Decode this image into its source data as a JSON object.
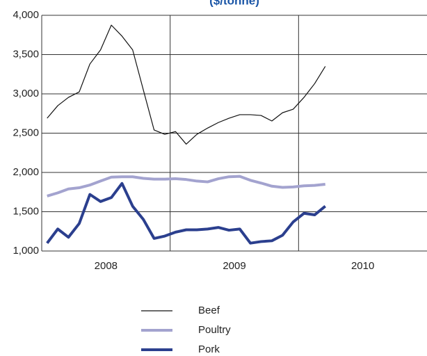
{
  "chart_data": {
    "type": "line",
    "title": "($/tonne)",
    "x": [
      2008.042,
      2008.125,
      2008.208,
      2008.292,
      2008.375,
      2008.458,
      2008.542,
      2008.625,
      2008.708,
      2008.792,
      2008.875,
      2008.958,
      2009.042,
      2009.125,
      2009.208,
      2009.292,
      2009.375,
      2009.458,
      2009.542,
      2009.625,
      2009.708,
      2009.792,
      2009.875,
      2009.958,
      2010.042,
      2010.125,
      2010.208
    ],
    "year_labels": [
      "2008",
      "2009",
      "2010"
    ],
    "xlim": [
      2008,
      2011
    ],
    "xticks": [
      2009,
      2010
    ],
    "ylim": [
      1000,
      4000
    ],
    "yticks": [
      {
        "value": 1000,
        "label": "1,000"
      },
      {
        "value": 1500,
        "label": "1,500"
      },
      {
        "value": 2000,
        "label": "2,000"
      },
      {
        "value": 2500,
        "label": "2,500"
      },
      {
        "value": 3000,
        "label": "3,000"
      },
      {
        "value": 3500,
        "label": "3,500"
      },
      {
        "value": 4000,
        "label": "4,000"
      }
    ],
    "grid": true,
    "series": [
      {
        "name": "Beef",
        "color": "#111111",
        "width": 1.2,
        "values": [
          2690,
          2850,
          2955,
          3025,
          3380,
          3560,
          3875,
          3735,
          3560,
          3045,
          2540,
          2485,
          2520,
          2360,
          2485,
          2565,
          2635,
          2690,
          2735,
          2735,
          2725,
          2655,
          2760,
          2805,
          2955,
          3130,
          3350
        ]
      },
      {
        "name": "Poultry",
        "color": "#a3a3cf",
        "width": 4,
        "values": [
          1700,
          1740,
          1790,
          1805,
          1840,
          1890,
          1940,
          1945,
          1945,
          1925,
          1915,
          1915,
          1920,
          1910,
          1890,
          1880,
          1920,
          1945,
          1950,
          1900,
          1865,
          1825,
          1810,
          1815,
          1830,
          1835,
          1850
        ]
      },
      {
        "name": "Pork",
        "color": "#2b3f8e",
        "width": 4,
        "values": [
          1100,
          1280,
          1175,
          1350,
          1720,
          1630,
          1680,
          1860,
          1570,
          1400,
          1160,
          1190,
          1240,
          1270,
          1270,
          1280,
          1300,
          1265,
          1280,
          1100,
          1120,
          1130,
          1200,
          1370,
          1480,
          1460,
          1570
        ]
      }
    ]
  }
}
